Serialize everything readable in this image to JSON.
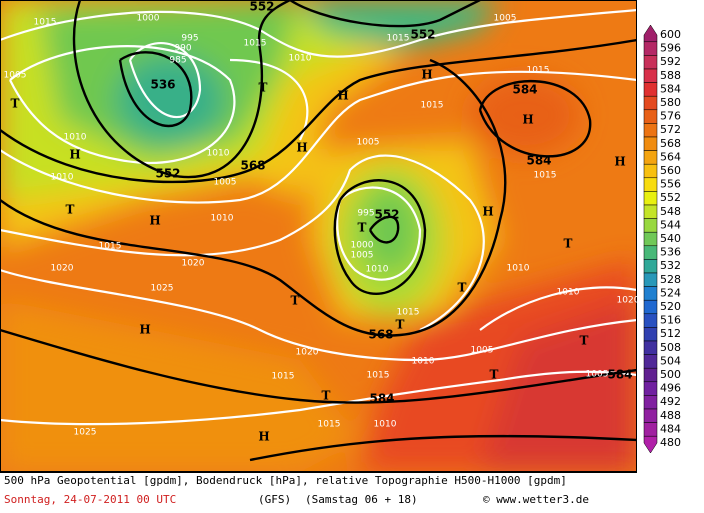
{
  "pressure_labels": [
    "1015",
    "1000",
    "995",
    "990",
    "985",
    "1005",
    "1015",
    "1010",
    "1015",
    "1005",
    "1015",
    "1015",
    "1010",
    "1005",
    "1010",
    "1005",
    "1010",
    "1010",
    "995",
    "1000",
    "1005",
    "1010",
    "1015",
    "1020",
    "1020",
    "1025",
    "1010",
    "1010",
    "1015",
    "1020",
    "1015",
    "1010",
    "1005",
    "1015",
    "1005",
    "1015",
    "1010",
    "1025",
    "1015",
    "1020"
  ],
  "geopotential_labels": [
    "552",
    "552",
    "536",
    "584",
    "552",
    "568",
    "584",
    "552",
    "568",
    "584",
    "584"
  ],
  "markers": [
    "T",
    "T",
    "H",
    "H",
    "H",
    "H",
    "H",
    "T",
    "H",
    "T",
    "H",
    "T",
    "T",
    "T",
    "T",
    "H",
    "T",
    "T",
    "T",
    "H",
    "H"
  ],
  "color_scale": {
    "labels": [
      600,
      596,
      592,
      588,
      584,
      580,
      576,
      572,
      568,
      564,
      560,
      556,
      552,
      548,
      544,
      540,
      536,
      532,
      528,
      524,
      520,
      516,
      512,
      508,
      504,
      500,
      496,
      492,
      488,
      484,
      480
    ],
    "colors": [
      "#a0206a",
      "#b42866",
      "#c8305a",
      "#d8304a",
      "#e03030",
      "#e44a20",
      "#e86018",
      "#ec7414",
      "#f08c10",
      "#f4a410",
      "#f8c010",
      "#f8dc10",
      "#e8f010",
      "#c4e428",
      "#98d840",
      "#70c858",
      "#48b878",
      "#30a898",
      "#2898b8",
      "#2080d0",
      "#2068d0",
      "#2850c0",
      "#3040b0",
      "#4030a0",
      "#502898",
      "#602090",
      "#7020a0",
      "#8020a0",
      "#9020a0",
      "#a020a0",
      "#b020a8"
    ]
  },
  "footer": {
    "line1": "500 hPa Geopotential [gpdm], Bodendruck [hPa], relative Topographie H500-H1000 [gpdm]",
    "date": "Sonntag, 24-07-2011  00 UTC",
    "model": "(GFS)",
    "run": "(Samstag 06 + 18)",
    "credit": "© www.wetter3.de"
  }
}
